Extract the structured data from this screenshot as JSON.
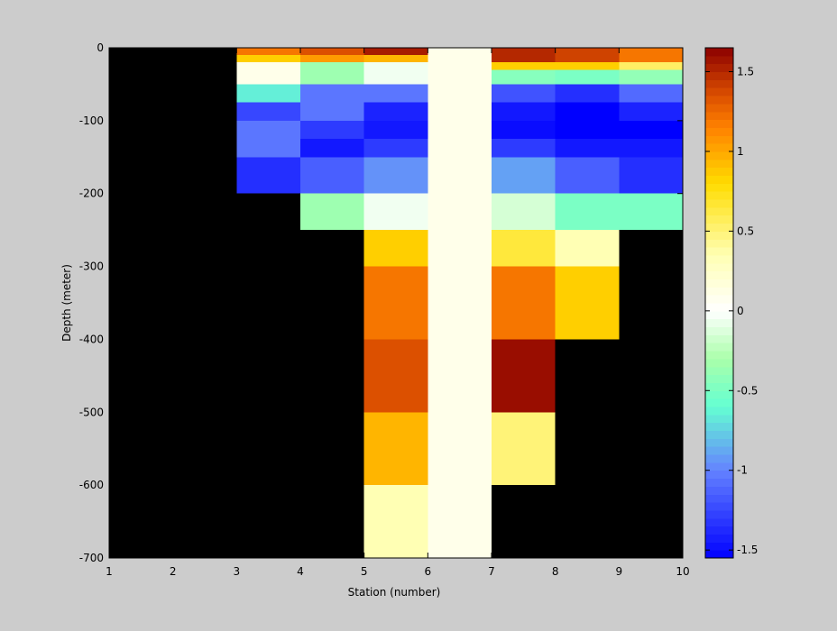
{
  "chart_data": {
    "type": "heatmap",
    "title": "",
    "xlabel": "Station (number)",
    "ylabel": "Depth (meter)",
    "xlim": [
      1,
      10
    ],
    "ylim": [
      -700,
      0
    ],
    "x_ticks": [
      "1",
      "2",
      "3",
      "4",
      "5",
      "6",
      "7",
      "8",
      "9",
      "10"
    ],
    "y_ticks": [
      "0",
      "-100",
      "-200",
      "-300",
      "-400",
      "-500",
      "-600",
      "-700"
    ],
    "x_tick_values": [
      1,
      2,
      3,
      4,
      5,
      6,
      7,
      8,
      9,
      10
    ],
    "y_tick_values": [
      0,
      -100,
      -200,
      -300,
      -400,
      -500,
      -600,
      -700
    ],
    "background_color": "#000000",
    "colorbar": {
      "range": [
        -1.55,
        1.65
      ],
      "ticks": [
        "-1.5",
        "-1",
        "-0.5",
        "0",
        "0.5",
        "1",
        "1.5"
      ],
      "tick_values": [
        -1.5,
        -1,
        -0.5,
        0,
        0.5,
        1,
        1.5
      ],
      "colormap": "jet-white-center",
      "levels": 64
    },
    "cells": [
      {
        "x0": 3,
        "x1": 4,
        "y_top": 0,
        "y_bot": -10,
        "value": 1.2
      },
      {
        "x0": 3,
        "x1": 4,
        "y_top": -10,
        "y_bot": -20,
        "value": 0.85
      },
      {
        "x0": 3,
        "x1": 4,
        "y_top": -20,
        "y_bot": -50,
        "value": 0.1
      },
      {
        "x0": 3,
        "x1": 4,
        "y_top": -50,
        "y_bot": -75,
        "value": -0.65
      },
      {
        "x0": 3,
        "x1": 4,
        "y_top": -75,
        "y_bot": -100,
        "value": -1.25
      },
      {
        "x0": 3,
        "x1": 4,
        "y_top": -100,
        "y_bot": -150,
        "value": -1.05
      },
      {
        "x0": 3,
        "x1": 4,
        "y_top": -150,
        "y_bot": -200,
        "value": -1.35
      },
      {
        "x0": 4,
        "x1": 5,
        "y_top": 0,
        "y_bot": -10,
        "value": 1.35
      },
      {
        "x0": 4,
        "x1": 5,
        "y_top": -10,
        "y_bot": -20,
        "value": 1.05
      },
      {
        "x0": 4,
        "x1": 5,
        "y_top": -20,
        "y_bot": -50,
        "value": -0.35
      },
      {
        "x0": 4,
        "x1": 5,
        "y_top": -50,
        "y_bot": -75,
        "value": -1.05
      },
      {
        "x0": 4,
        "x1": 5,
        "y_top": -75,
        "y_bot": -100,
        "value": -1.05
      },
      {
        "x0": 4,
        "x1": 5,
        "y_top": -100,
        "y_bot": -125,
        "value": -1.3
      },
      {
        "x0": 4,
        "x1": 5,
        "y_top": -125,
        "y_bot": -150,
        "value": -1.45
      },
      {
        "x0": 4,
        "x1": 5,
        "y_top": -150,
        "y_bot": -200,
        "value": -1.15
      },
      {
        "x0": 4,
        "x1": 5,
        "y_top": -200,
        "y_bot": -250,
        "value": -0.35
      },
      {
        "x0": 5,
        "x1": 6,
        "y_top": 0,
        "y_bot": -10,
        "value": 1.55
      },
      {
        "x0": 5,
        "x1": 6,
        "y_top": -10,
        "y_bot": -20,
        "value": 0.95
      },
      {
        "x0": 5,
        "x1": 6,
        "y_top": -20,
        "y_bot": -50,
        "value": -0.05
      },
      {
        "x0": 5,
        "x1": 6,
        "y_top": -50,
        "y_bot": -75,
        "value": -1.05
      },
      {
        "x0": 5,
        "x1": 6,
        "y_top": -75,
        "y_bot": -100,
        "value": -1.4
      },
      {
        "x0": 5,
        "x1": 6,
        "y_top": -100,
        "y_bot": -125,
        "value": -1.45
      },
      {
        "x0": 5,
        "x1": 6,
        "y_top": -125,
        "y_bot": -150,
        "value": -1.3
      },
      {
        "x0": 5,
        "x1": 6,
        "y_top": -150,
        "y_bot": -200,
        "value": -0.95
      },
      {
        "x0": 5,
        "x1": 6,
        "y_top": -200,
        "y_bot": -250,
        "value": -0.05
      },
      {
        "x0": 5,
        "x1": 6,
        "y_top": -250,
        "y_bot": -300,
        "value": 0.85
      },
      {
        "x0": 5,
        "x1": 6,
        "y_top": -300,
        "y_bot": -400,
        "value": 1.2
      },
      {
        "x0": 5,
        "x1": 6,
        "y_top": -400,
        "y_bot": -500,
        "value": 1.35
      },
      {
        "x0": 5,
        "x1": 6,
        "y_top": -500,
        "y_bot": -600,
        "value": 0.95
      },
      {
        "x0": 5,
        "x1": 6,
        "y_top": -600,
        "y_bot": -700,
        "value": 0.35
      },
      {
        "x0": 6,
        "x1": 7,
        "y_top": 0,
        "y_bot": -700,
        "value": 0.1
      },
      {
        "x0": 7,
        "x1": 8,
        "y_top": 0,
        "y_bot": -20,
        "value": 1.5
      },
      {
        "x0": 7,
        "x1": 8,
        "y_top": -20,
        "y_bot": -30,
        "value": 0.85
      },
      {
        "x0": 7,
        "x1": 8,
        "y_top": -30,
        "y_bot": -50,
        "value": -0.45
      },
      {
        "x0": 7,
        "x1": 8,
        "y_top": -50,
        "y_bot": -75,
        "value": -1.2
      },
      {
        "x0": 7,
        "x1": 8,
        "y_top": -75,
        "y_bot": -100,
        "value": -1.45
      },
      {
        "x0": 7,
        "x1": 8,
        "y_top": -100,
        "y_bot": -125,
        "value": -1.5
      },
      {
        "x0": 7,
        "x1": 8,
        "y_top": -125,
        "y_bot": -150,
        "value": -1.3
      },
      {
        "x0": 7,
        "x1": 8,
        "y_top": -150,
        "y_bot": -200,
        "value": -0.9
      },
      {
        "x0": 7,
        "x1": 8,
        "y_top": -200,
        "y_bot": -250,
        "value": -0.15
      },
      {
        "x0": 7,
        "x1": 8,
        "y_top": -250,
        "y_bot": -300,
        "value": 0.65
      },
      {
        "x0": 7,
        "x1": 8,
        "y_top": -300,
        "y_bot": -400,
        "value": 1.2
      },
      {
        "x0": 7,
        "x1": 8,
        "y_top": -400,
        "y_bot": -500,
        "value": 1.6
      },
      {
        "x0": 7,
        "x1": 8,
        "y_top": -500,
        "y_bot": -600,
        "value": 0.5
      },
      {
        "x0": 8,
        "x1": 9,
        "y_top": 0,
        "y_bot": -20,
        "value": 1.4
      },
      {
        "x0": 8,
        "x1": 9,
        "y_top": -20,
        "y_bot": -30,
        "value": 0.85
      },
      {
        "x0": 8,
        "x1": 9,
        "y_top": -30,
        "y_bot": -50,
        "value": -0.5
      },
      {
        "x0": 8,
        "x1": 9,
        "y_top": -50,
        "y_bot": -75,
        "value": -1.35
      },
      {
        "x0": 8,
        "x1": 9,
        "y_top": -75,
        "y_bot": -100,
        "value": -1.55
      },
      {
        "x0": 8,
        "x1": 9,
        "y_top": -100,
        "y_bot": -125,
        "value": -1.55
      },
      {
        "x0": 8,
        "x1": 9,
        "y_top": -125,
        "y_bot": -150,
        "value": -1.45
      },
      {
        "x0": 8,
        "x1": 9,
        "y_top": -150,
        "y_bot": -200,
        "value": -1.15
      },
      {
        "x0": 8,
        "x1": 9,
        "y_top": -200,
        "y_bot": -250,
        "value": -0.5
      },
      {
        "x0": 8,
        "x1": 9,
        "y_top": -250,
        "y_bot": -300,
        "value": 0.35
      },
      {
        "x0": 8,
        "x1": 9,
        "y_top": -300,
        "y_bot": -400,
        "value": 0.85
      },
      {
        "x0": 9,
        "x1": 10,
        "y_top": 0,
        "y_bot": -20,
        "value": 1.2
      },
      {
        "x0": 9,
        "x1": 10,
        "y_top": -20,
        "y_bot": -30,
        "value": 0.55
      },
      {
        "x0": 9,
        "x1": 10,
        "y_top": -30,
        "y_bot": -50,
        "value": -0.4
      },
      {
        "x0": 9,
        "x1": 10,
        "y_top": -50,
        "y_bot": -75,
        "value": -1.1
      },
      {
        "x0": 9,
        "x1": 10,
        "y_top": -75,
        "y_bot": -100,
        "value": -1.4
      },
      {
        "x0": 9,
        "x1": 10,
        "y_top": -100,
        "y_bot": -125,
        "value": -1.55
      },
      {
        "x0": 9,
        "x1": 10,
        "y_top": -125,
        "y_bot": -150,
        "value": -1.45
      },
      {
        "x0": 9,
        "x1": 10,
        "y_top": -150,
        "y_bot": -200,
        "value": -1.35
      },
      {
        "x0": 9,
        "x1": 10,
        "y_top": -200,
        "y_bot": -250,
        "value": -0.5
      }
    ]
  }
}
